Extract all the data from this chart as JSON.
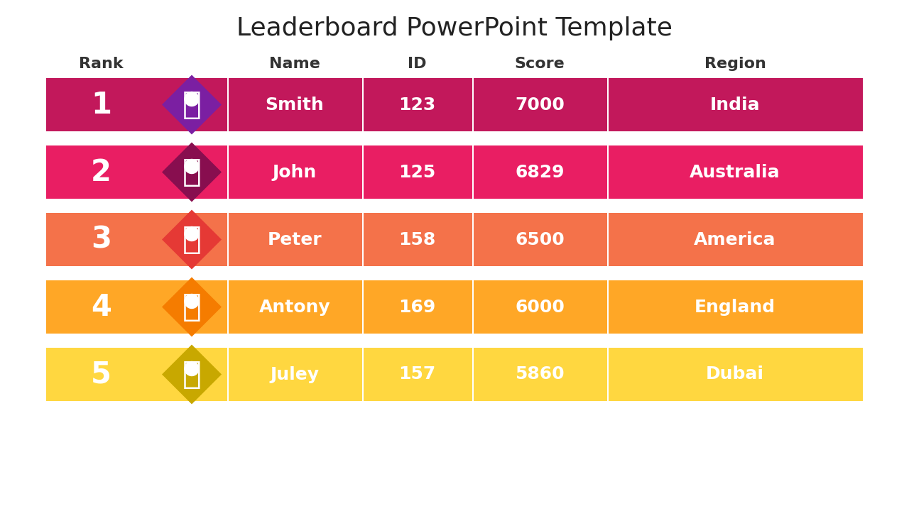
{
  "title": "Leaderboard PowerPoint Template",
  "headers": [
    "Rank",
    "Name",
    "ID",
    "Score",
    "Region"
  ],
  "rows": [
    {
      "rank": "1",
      "name": "Smith",
      "id": "123",
      "score": "7000",
      "region": "India",
      "row_color": "#C2185B",
      "diamond_color": "#7B1FA2",
      "lighter": "#C2185B"
    },
    {
      "rank": "2",
      "name": "John",
      "id": "125",
      "score": "6829",
      "region": "Australia",
      "row_color": "#E91E63",
      "diamond_color": "#880E4F",
      "lighter": "#E91E63"
    },
    {
      "rank": "3",
      "name": "Peter",
      "id": "158",
      "score": "6500",
      "region": "America",
      "row_color": "#F4724A",
      "diamond_color": "#E53935",
      "lighter": "#F4724A"
    },
    {
      "rank": "4",
      "name": "Antony",
      "id": "169",
      "score": "6000",
      "region": "England",
      "row_color": "#FFA726",
      "diamond_color": "#F57C00",
      "lighter": "#FFA726"
    },
    {
      "rank": "5",
      "name": "Juley",
      "id": "157",
      "score": "5860",
      "region": "Dubai",
      "row_color": "#FFD740",
      "diamond_color": "#C8A800",
      "lighter": "#FFD740"
    }
  ],
  "bg_color": "#FFFFFF",
  "text_color": "#FFFFFF",
  "header_text_color": "#333333",
  "title_color": "#222222"
}
